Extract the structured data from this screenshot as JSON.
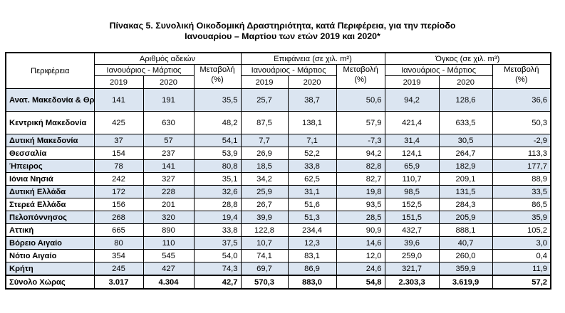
{
  "title_line1": "Πίνακας 5. Συνολική Οικοδομική Δραστηριότητα, κατά Περιφέρεια, για την περίοδο",
  "title_line2": "Ιανουαρίου – Μαρτίου των ετών 2019 και 2020*",
  "headers": {
    "region": "Περιφέρεια",
    "groups": [
      "Αριθμός αδειών",
      "Επιφάνεια (σε χιλ. m²)",
      "Όγκος (σε χιλ. m³)"
    ],
    "period": "Ιανουάριος - Μάρτιος",
    "change_l1": "Μεταβολή",
    "change_l2": "(%)",
    "year1": "2019",
    "year2": "2020"
  },
  "rows": [
    {
      "region": "Ανατ. Μακεδονία & Θράκη",
      "permits_2019": "141",
      "permits_2020": "191",
      "permits_change": "35,5",
      "area_2019": "25,7",
      "area_2020": "38,7",
      "area_change": "50,6",
      "volume_2019": "94,2",
      "volume_2020": "128,6",
      "volume_change": "36,6"
    },
    {
      "region": "Κεντρική Μακεδονία",
      "permits_2019": "425",
      "permits_2020": "630",
      "permits_change": "48,2",
      "area_2019": "87,5",
      "area_2020": "138,1",
      "area_change": "57,9",
      "volume_2019": "421,4",
      "volume_2020": "633,5",
      "volume_change": "50,3"
    },
    {
      "region": "Δυτική Μακεδονία",
      "permits_2019": "37",
      "permits_2020": "57",
      "permits_change": "54,1",
      "area_2019": "7,7",
      "area_2020": "7,1",
      "area_change": "-7,3",
      "volume_2019": "31,4",
      "volume_2020": "30,5",
      "volume_change": "-2,9"
    },
    {
      "region": "Θεσσαλία",
      "permits_2019": "154",
      "permits_2020": "237",
      "permits_change": "53,9",
      "area_2019": "26,9",
      "area_2020": "52,2",
      "area_change": "94,2",
      "volume_2019": "124,1",
      "volume_2020": "264,7",
      "volume_change": "113,3"
    },
    {
      "region": "Ήπειρος",
      "permits_2019": "78",
      "permits_2020": "141",
      "permits_change": "80,8",
      "area_2019": "18,5",
      "area_2020": "33,8",
      "area_change": "82,8",
      "volume_2019": "65,9",
      "volume_2020": "182,9",
      "volume_change": "177,7"
    },
    {
      "region": "Ιόνια Νησιά",
      "permits_2019": "242",
      "permits_2020": "327",
      "permits_change": "35,1",
      "area_2019": "34,2",
      "area_2020": "62,5",
      "area_change": "82,7",
      "volume_2019": "110,7",
      "volume_2020": "209,1",
      "volume_change": "88,9"
    },
    {
      "region": "Δυτική Ελλάδα",
      "permits_2019": "172",
      "permits_2020": "228",
      "permits_change": "32,6",
      "area_2019": "25,9",
      "area_2020": "31,1",
      "area_change": "19,8",
      "volume_2019": "98,5",
      "volume_2020": "131,5",
      "volume_change": "33,5"
    },
    {
      "region": "Στερεά Ελλάδα",
      "permits_2019": "156",
      "permits_2020": "201",
      "permits_change": "28,8",
      "area_2019": "26,7",
      "area_2020": "51,6",
      "area_change": "93,5",
      "volume_2019": "152,5",
      "volume_2020": "284,3",
      "volume_change": "86,5"
    },
    {
      "region": "Πελοπόννησος",
      "permits_2019": "268",
      "permits_2020": "320",
      "permits_change": "19,4",
      "area_2019": "39,9",
      "area_2020": "51,3",
      "area_change": "28,5",
      "volume_2019": "151,5",
      "volume_2020": "205,9",
      "volume_change": "35,9"
    },
    {
      "region": "Αττική",
      "permits_2019": "665",
      "permits_2020": "890",
      "permits_change": "33,8",
      "area_2019": "122,8",
      "area_2020": "234,4",
      "area_change": "90,9",
      "volume_2019": "432,7",
      "volume_2020": "888,1",
      "volume_change": "105,2"
    },
    {
      "region": "Βόρειο Αιγαίο",
      "permits_2019": "80",
      "permits_2020": "110",
      "permits_change": "37,5",
      "area_2019": "10,7",
      "area_2020": "12,3",
      "area_change": "14,6",
      "volume_2019": "39,6",
      "volume_2020": "40,7",
      "volume_change": "3,0"
    },
    {
      "region": "Νότιο Αιγαίο",
      "permits_2019": "354",
      "permits_2020": "545",
      "permits_change": "54,0",
      "area_2019": "74,1",
      "area_2020": "83,1",
      "area_change": "12,0",
      "volume_2019": "259,0",
      "volume_2020": "260,0",
      "volume_change": "0,4"
    },
    {
      "region": "Κρήτη",
      "permits_2019": "245",
      "permits_2020": "427",
      "permits_change": "74,3",
      "area_2019": "69,7",
      "area_2020": "86,9",
      "area_change": "24,6",
      "volume_2019": "321,7",
      "volume_2020": "359,9",
      "volume_change": "11,9"
    }
  ],
  "total": {
    "region": "Σύνολο Χώρας",
    "permits_2019": "3.017",
    "permits_2020": "4.304",
    "permits_change": "42,7",
    "area_2019": "570,3",
    "area_2020": "883,0",
    "area_change": "54,8",
    "volume_2019": "2.303,3",
    "volume_2020": "3.619,9",
    "volume_change": "57,2"
  },
  "colors": {
    "row_shade": "#dbe5f1",
    "border": "#000000"
  }
}
